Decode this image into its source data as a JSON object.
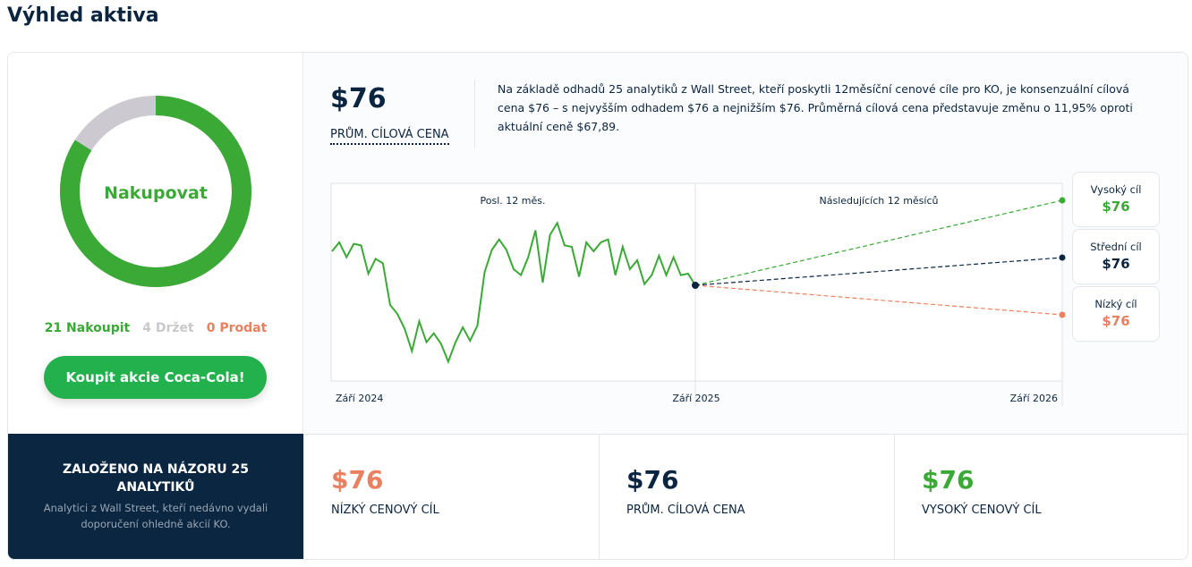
{
  "title": "Výhled aktiva",
  "consensus": {
    "label": "Nakupovat",
    "buy": 21,
    "hold": 4,
    "sell": 0,
    "buy_text": "21 Nakoupit",
    "hold_text": "4 Držet",
    "sell_text": "0 Prodat",
    "colors": {
      "buy": "#3aa935",
      "hold": "#ccc9d0",
      "sell": "#e9805f"
    }
  },
  "buy_button": "Koupit akcie Coca-Cola!",
  "summary": {
    "avg_value": "$76",
    "avg_label": "PRŮM. CÍLOVÁ CENA",
    "description": "Na základě odhadů 25 analytiků z Wall Street, kteří poskytli 12měsíční cenové cíle pro KO, je konsenzuální cílová cena $76 – s nejvyšším odhadem $76 a nejnižším $76. Průměrná cílová cena představuje změnu o 11,95% oproti aktuální ceně $67,89."
  },
  "chart_data": {
    "type": "line",
    "past_label": "Posl. 12 měs.",
    "future_label": "Následujících 12 měsíců",
    "x_ticks": [
      "Září 2024",
      "Září 2025",
      "Září 2026"
    ],
    "price_series": [
      70.93,
      71.73,
      70.4,
      71.6,
      71.46,
      68.93,
      70.26,
      69.86,
      66.13,
      65.33,
      64.0,
      62.0,
      64.67,
      62.8,
      63.6,
      62.66,
      61.06,
      62.8,
      64.13,
      62.93,
      64.26,
      69.06,
      71.06,
      71.99,
      71.06,
      69.33,
      68.8,
      70.4,
      72.8,
      68.13,
      72.4,
      73.46,
      71.46,
      71.33,
      68.66,
      71.73,
      70.93,
      71.73,
      71.99,
      68.8,
      71.33,
      69.33,
      70.13,
      68.0,
      68.8,
      70.53,
      68.8,
      70.4,
      68.8,
      68.93,
      67.89
    ],
    "current_price": 67.89,
    "targets": [
      {
        "label": "Vysoký cíl",
        "value": "$76",
        "color": "#3aa935"
      },
      {
        "label": "Střední cíl",
        "value": "$76",
        "color": "#0b2540"
      },
      {
        "label": "Nízký cíl",
        "value": "$76",
        "color": "#e9805f"
      }
    ]
  },
  "bottom": {
    "analysts_title": "ZALOŽENO NA NÁZORU 25 ANALYTIKŮ",
    "analysts_sub": "Analytici z Wall Street, kteří nedávno vydali doporučení ohledně akcií KO.",
    "stats": [
      {
        "value": "$76",
        "label": "NÍZKÝ CENOVÝ CÍL",
        "color": "#e9805f"
      },
      {
        "value": "$76",
        "label": "PRŮM. CÍLOVÁ CENA",
        "color": "#0b2540"
      },
      {
        "value": "$76",
        "label": "VYSOKÝ CENOVÝ CÍL",
        "color": "#3aa935"
      }
    ]
  }
}
